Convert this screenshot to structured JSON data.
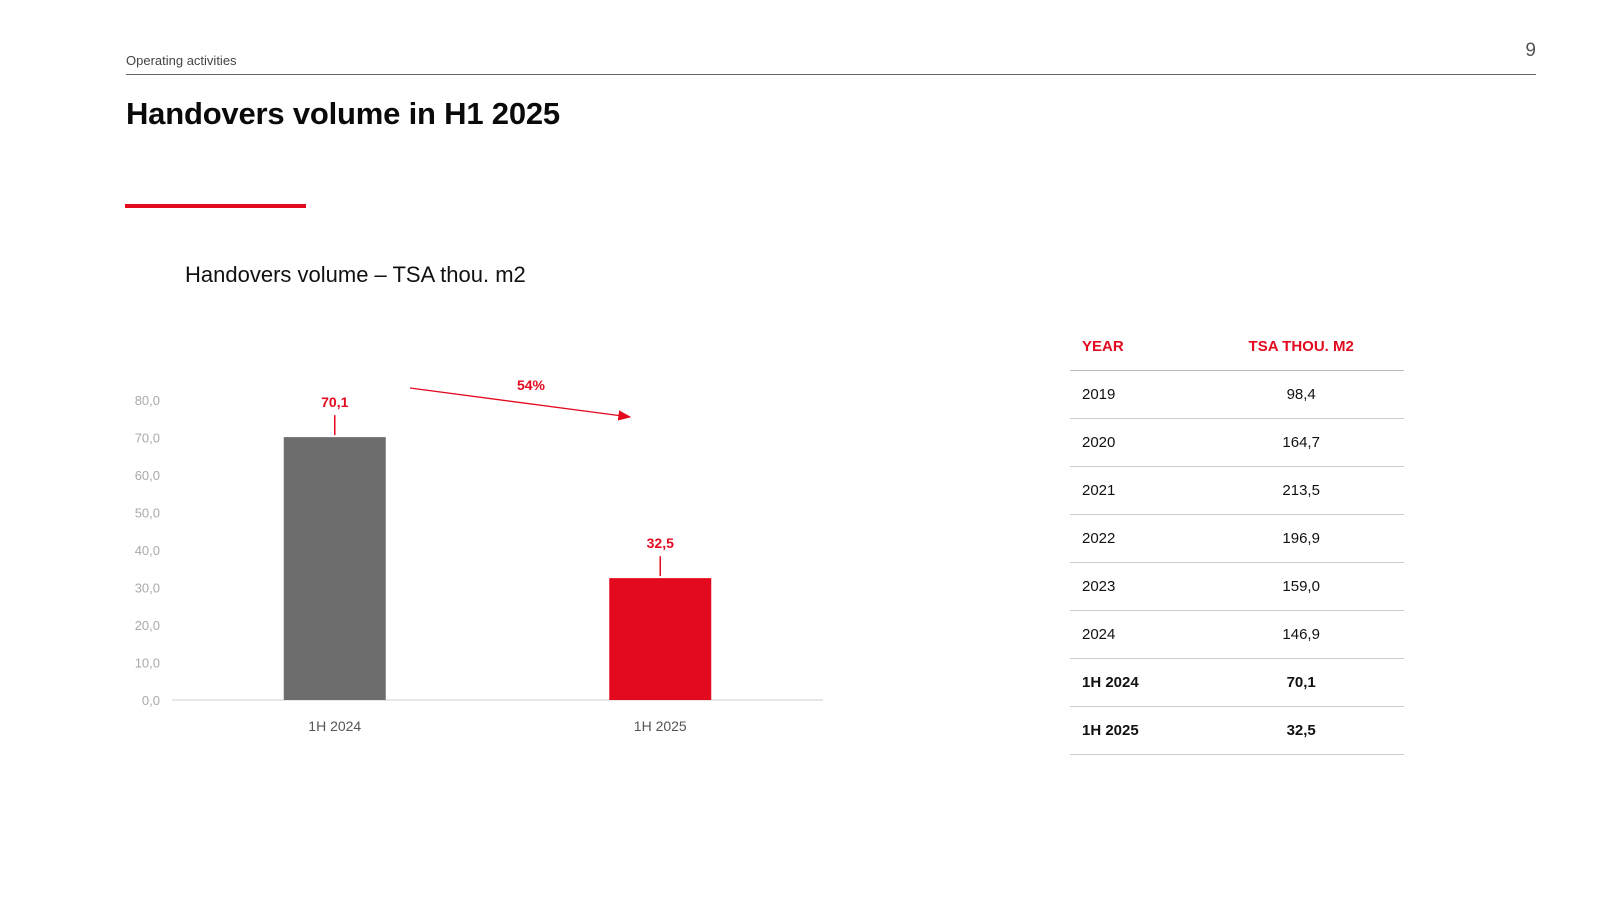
{
  "header": {
    "section_label": "Operating activities",
    "page_number": "9",
    "title": "Handovers volume in H1 2025"
  },
  "colors": {
    "accent": "#e30a1f",
    "bar_primary": "#6d6d6d",
    "bar_highlight": "#e30a1f",
    "axis_text": "#aaaaaa"
  },
  "chart_data": {
    "type": "bar",
    "title": "Handovers volume – TSA thou. m2",
    "categories": [
      "1H 2024",
      "1H 2025"
    ],
    "values": [
      70.1,
      32.5
    ],
    "value_labels": [
      "70,1",
      "32,5"
    ],
    "bar_colors": [
      "#6d6d6d",
      "#e30a1f"
    ],
    "ylim": [
      0,
      80
    ],
    "yticks": [
      "0,0",
      "10,0",
      "20,0",
      "30,0",
      "40,0",
      "50,0",
      "60,0",
      "70,0",
      "80,0"
    ],
    "annotation": "54%",
    "grid": false,
    "legend": "none"
  },
  "table": {
    "headers": [
      "YEAR",
      "TSA THOU. M2"
    ],
    "rows": [
      {
        "year": "2019",
        "value": "98,4",
        "bold": false
      },
      {
        "year": "2020",
        "value": "164,7",
        "bold": false
      },
      {
        "year": "2021",
        "value": "213,5",
        "bold": false
      },
      {
        "year": "2022",
        "value": "196,9",
        "bold": false
      },
      {
        "year": "2023",
        "value": "159,0",
        "bold": false
      },
      {
        "year": "2024",
        "value": "146,9",
        "bold": false
      },
      {
        "year": "1H 2024",
        "value": "70,1",
        "bold": true
      },
      {
        "year": "1H 2025",
        "value": "32,5",
        "bold": true
      }
    ]
  }
}
